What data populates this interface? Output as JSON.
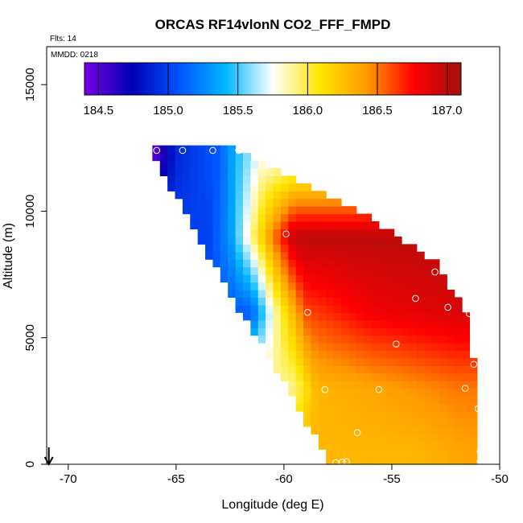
{
  "chart_data": {
    "type": "heatmap",
    "title": "ORCAS RF14vlonN CO2_FFF_FMPD",
    "flights_note": "Flts: 14",
    "date_note": "MMDD: 0218",
    "xlabel": "Longitude (deg E)",
    "ylabel": "Altitude (m)",
    "xlim": [
      -71,
      -50
    ],
    "ylim": [
      0,
      16500
    ],
    "x_ticks": [
      -70,
      -65,
      -60,
      -55,
      -50
    ],
    "x_tick_labels": [
      "-70",
      "-65",
      "-60",
      "-55",
      "-50"
    ],
    "y_ticks": [
      0,
      5000,
      10000,
      15000
    ],
    "y_tick_labels": [
      "0",
      "5000",
      "10000",
      "15000"
    ],
    "colorbar": {
      "range": [
        184.4,
        187.1
      ],
      "ticks": [
        184.5,
        185.0,
        185.5,
        186.0,
        186.5,
        187.0
      ],
      "tick_labels": [
        "184.5",
        "185.0",
        "185.5",
        "186.0",
        "186.5",
        "187.0"
      ],
      "colors": [
        "#7a00e6",
        "#0000b3",
        "#0052ff",
        "#00b8ff",
        "#ffffff",
        "#ffe600",
        "#ff9a00",
        "#ff0000",
        "#a01010"
      ]
    },
    "domain_left_edge": [
      [
        0,
        -57.9
      ],
      [
        3000,
        -59.8
      ],
      [
        6000,
        -62
      ],
      [
        9000,
        -64
      ],
      [
        12400,
        -66.2
      ]
    ],
    "domain_right_edge": [
      [
        0,
        -51
      ],
      [
        4000,
        -51.2
      ],
      [
        6000,
        -51.5
      ],
      [
        8000,
        -53
      ],
      [
        10000,
        -56.5
      ],
      [
        12400,
        -62.2
      ]
    ],
    "cross_section_field": [
      {
        "altitude": 12000,
        "CO2_by_longitude": [
          [
            -66,
            184.5
          ],
          [
            -65,
            184.9
          ],
          [
            -63,
            185.1
          ],
          [
            -62,
            185.5
          ],
          [
            -61,
            185.8
          ]
        ]
      },
      {
        "altitude": 9000,
        "CO2_by_longitude": [
          [
            -63.5,
            185.0
          ],
          [
            -62.5,
            185.3
          ],
          [
            -61.5,
            185.9
          ],
          [
            -60.5,
            186.5
          ],
          [
            -59.5,
            187.0
          ],
          [
            -56,
            187.0
          ]
        ]
      },
      {
        "altitude": 6000,
        "CO2_by_longitude": [
          [
            -61.5,
            185.1
          ],
          [
            -60.5,
            185.8
          ],
          [
            -59,
            186.6
          ],
          [
            -56,
            186.8
          ],
          [
            -52,
            186.9
          ]
        ]
      },
      {
        "altitude": 3000,
        "CO2_by_longitude": [
          [
            -59.5,
            185.9
          ],
          [
            -58.5,
            186.3
          ],
          [
            -55,
            186.4
          ],
          [
            -52,
            186.5
          ]
        ]
      },
      {
        "altitude": 500,
        "CO2_by_longitude": [
          [
            -57.5,
            186.3
          ],
          [
            -54,
            186.3
          ],
          [
            -51,
            186.4
          ]
        ]
      }
    ],
    "observation_points": [
      {
        "lon": -65.9,
        "alt": 12400
      },
      {
        "lon": -64.7,
        "alt": 12400
      },
      {
        "lon": -63.3,
        "alt": 12400
      },
      {
        "lon": -62.1,
        "alt": 12400
      },
      {
        "lon": -60.8,
        "alt": 11800
      },
      {
        "lon": -59.9,
        "alt": 9100
      },
      {
        "lon": -58.9,
        "alt": 6000
      },
      {
        "lon": -58.1,
        "alt": 2950
      },
      {
        "lon": -56.6,
        "alt": 1250
      },
      {
        "lon": -57.1,
        "alt": 100
      },
      {
        "lon": -57.3,
        "alt": 80
      },
      {
        "lon": -57.6,
        "alt": 60
      },
      {
        "lon": -55.6,
        "alt": 2950
      },
      {
        "lon": -54.8,
        "alt": 4750
      },
      {
        "lon": -53.9,
        "alt": 6550
      },
      {
        "lon": -53.0,
        "alt": 7600
      },
      {
        "lon": -52.4,
        "alt": 6200
      },
      {
        "lon": -51.4,
        "alt": 5950
      },
      {
        "lon": -51.6,
        "alt": 3000
      },
      {
        "lon": -51.2,
        "alt": 3950
      },
      {
        "lon": -51.0,
        "alt": 2200
      },
      {
        "lon": -50.9,
        "alt": 500
      },
      {
        "lon": -50.9,
        "alt": 120
      }
    ],
    "arrow_marker": {
      "lon": -70.9,
      "direction": "down"
    }
  }
}
